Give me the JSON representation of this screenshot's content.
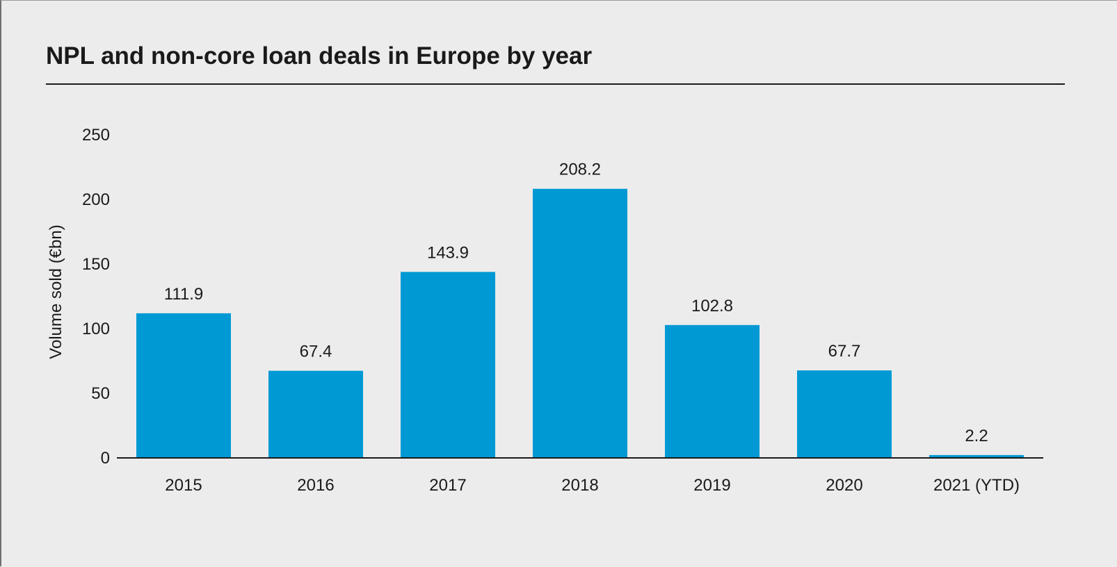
{
  "chart_data": {
    "type": "bar",
    "title": "NPL and non-core loan deals in Europe by year",
    "ylabel": "Volume sold (€bn)",
    "xlabel": "",
    "categories": [
      "2015",
      "2016",
      "2017",
      "2018",
      "2019",
      "2020",
      "2021 (YTD)"
    ],
    "values": [
      111.9,
      67.4,
      143.9,
      208.2,
      102.8,
      67.7,
      2.2
    ],
    "data_labels": [
      "111.9",
      "67.4",
      "143.9",
      "208.2",
      "102.8",
      "67.7",
      "2.2"
    ],
    "ylim": [
      0,
      250
    ],
    "yticks": [
      0,
      50,
      100,
      150,
      200,
      250
    ],
    "grid": false,
    "legend": "none",
    "bar_color": "#0099d4"
  }
}
